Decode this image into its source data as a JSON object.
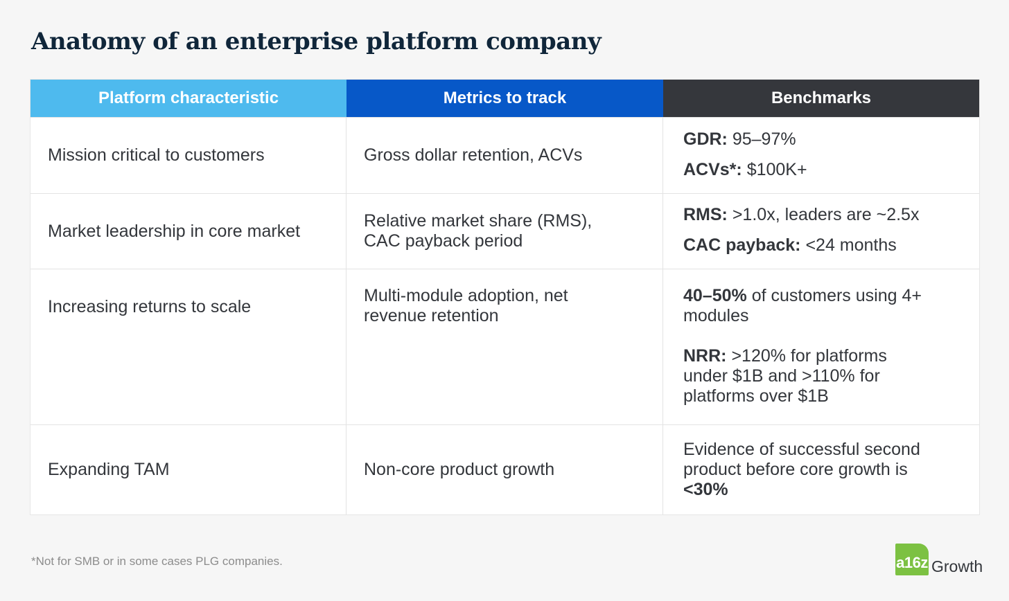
{
  "title": "Anatomy of an enterprise platform company",
  "colors": {
    "header1": "#4ebaee",
    "header2": "#0758c8",
    "header3": "#35373c",
    "logo": "#7cc142"
  },
  "columns": [
    "Platform characteristic",
    "Metrics to track",
    "Benchmarks"
  ],
  "rows": [
    {
      "characteristic": "Mission critical to customers",
      "metrics": "Gross dollar retention, ACVs",
      "bench": [
        {
          "bold": "GDR:",
          "text": " 95–97%"
        },
        {
          "bold": "ACVs*:",
          "text": " $100K+"
        }
      ]
    },
    {
      "characteristic": "Market leadership in core market",
      "metrics": "Relative market share (RMS), CAC payback period",
      "bench": [
        {
          "bold": "RMS:",
          "text": " >1.0x, leaders are ~2.5x"
        },
        {
          "bold": "CAC payback:",
          "text": " <24 months"
        }
      ]
    },
    {
      "characteristic": "Increasing returns to scale",
      "metrics": "Multi-module adoption, net revenue retention",
      "bench": [
        {
          "bold": "40–50%",
          "text": " of customers using 4+ modules"
        },
        {
          "bold": "NRR:",
          "text": " >120% for platforms under $1B and >110% for platforms over $1B"
        }
      ]
    },
    {
      "characteristic": "Expanding TAM",
      "metrics": "Non-core product growth",
      "bench_text": "Evidence of successful second product before core growth is ",
      "bench_bold": "<30%"
    }
  ],
  "footnote": "*Not for SMB or in some cases PLG companies.",
  "logo": {
    "badge": "a16z",
    "text": "Growth"
  }
}
